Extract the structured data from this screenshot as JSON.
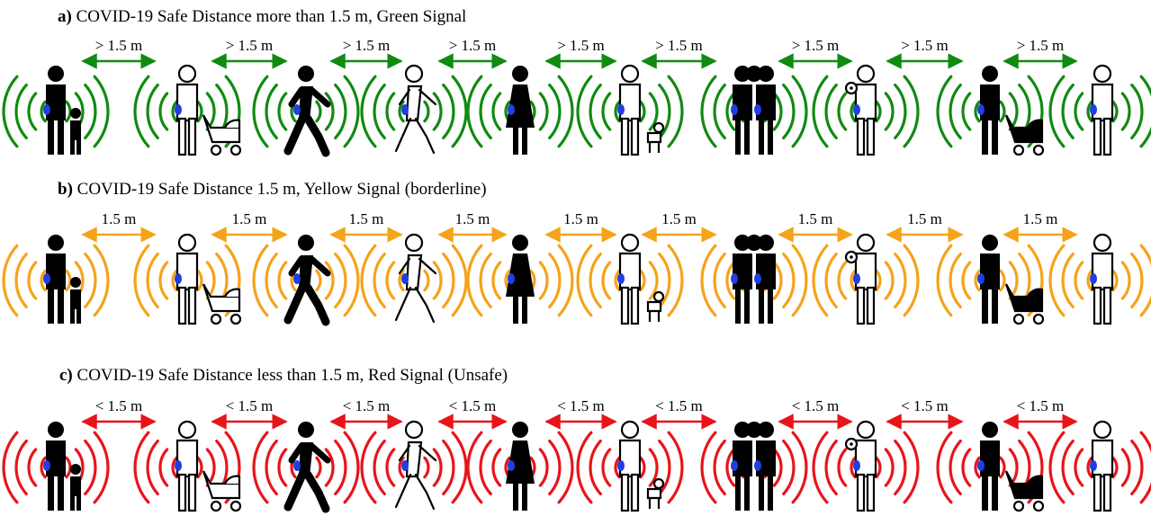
{
  "rows": [
    {
      "id": "green",
      "prefix": "a)",
      "caption": " COVID-19 Safe Distance more than 1.5 m, Green Signal",
      "distance_label": "> 1.5 m",
      "color": "#118a11"
    },
    {
      "id": "yellow",
      "prefix": "b)",
      "caption": " COVID-19 Safe Distance 1.5 m, Yellow Signal (borderline)",
      "distance_label": "1.5 m",
      "color": "#f5a31a"
    },
    {
      "id": "red",
      "prefix": "c)",
      "caption": " COVID-19 Safe Distance less than 1.5 m, Red Signal (Unsafe)",
      "distance_label": "< 1.5 m",
      "color": "#e8141a"
    }
  ],
  "figures": [
    {
      "kind": "parent-child",
      "style": "solid"
    },
    {
      "kind": "person-with-stroller",
      "style": "outline"
    },
    {
      "kind": "walking-person",
      "style": "solid"
    },
    {
      "kind": "walking-person",
      "style": "outline"
    },
    {
      "kind": "woman",
      "style": "solid"
    },
    {
      "kind": "person-with-dog",
      "style": "outline"
    },
    {
      "kind": "couple",
      "style": "solid"
    },
    {
      "kind": "carrying-baby",
      "style": "outline"
    },
    {
      "kind": "person-with-stroller",
      "style": "solid"
    },
    {
      "kind": "standing-person",
      "style": "outline"
    }
  ],
  "device_color": "#1f3fe0"
}
